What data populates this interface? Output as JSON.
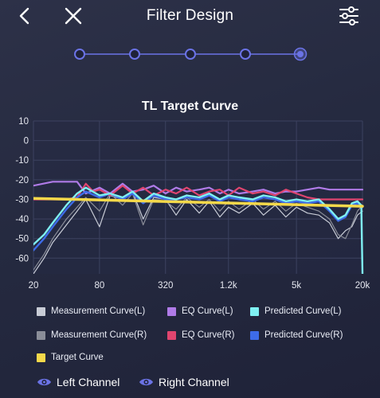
{
  "header": {
    "title": "Filter Design"
  },
  "icons": {
    "back": "chevron-left-icon",
    "close": "close-icon",
    "settings": "sliders-icon",
    "eye": "eye-icon"
  },
  "stepper": {
    "steps": 5,
    "current": 5
  },
  "colors": {
    "accent": "#6b73e6",
    "measurement_l": "#c8ccd6",
    "measurement_r": "#8a8d98",
    "eq_l": "#b07be8",
    "eq_r": "#e0456f",
    "predicted_l": "#7ff0f2",
    "predicted_r": "#3d6be8",
    "target": "#f5d94a"
  },
  "chart_data": {
    "type": "line",
    "title": "TL Target Curve",
    "x_scale": "log",
    "x_ticks": [
      "20",
      "80",
      "320",
      "1.2k",
      "5k",
      "20k"
    ],
    "x_tick_values": [
      20,
      80,
      320,
      1200,
      5000,
      20000
    ],
    "y_ticks": [
      "10",
      "0",
      "-10",
      "-20",
      "-30",
      "-40",
      "-50",
      "-60"
    ],
    "ylim": [
      -68,
      10
    ],
    "grid": true,
    "series": [
      {
        "name": "Measurement Curve(L)",
        "color_key": "measurement_l",
        "x": [
          20,
          25,
          30,
          40,
          50,
          60,
          80,
          100,
          130,
          160,
          200,
          250,
          320,
          400,
          500,
          650,
          800,
          1000,
          1200,
          1500,
          2000,
          2500,
          3200,
          4000,
          5000,
          6300,
          8000,
          10000,
          12000,
          14000,
          16000,
          18000,
          20000
        ],
        "y": [
          -68,
          -60,
          -52,
          -43,
          -36,
          -30,
          -44,
          -28,
          -30,
          -26,
          -40,
          -29,
          -30,
          -38,
          -30,
          -37,
          -31,
          -39,
          -34,
          -37,
          -32,
          -38,
          -33,
          -39,
          -34,
          -37,
          -38,
          -42,
          -50,
          -46,
          -44,
          -38,
          -36
        ]
      },
      {
        "name": "Measurement Curve(R)",
        "color_key": "measurement_r",
        "x": [
          20,
          25,
          30,
          40,
          50,
          60,
          80,
          100,
          130,
          160,
          200,
          250,
          320,
          400,
          500,
          650,
          800,
          1000,
          1200,
          1500,
          2000,
          2500,
          3200,
          4000,
          5000,
          6300,
          8000,
          10000,
          12000,
          14000,
          16000,
          18000,
          20000
        ],
        "y": [
          -66,
          -58,
          -50,
          -40,
          -34,
          -29,
          -36,
          -27,
          -33,
          -27,
          -43,
          -30,
          -31,
          -35,
          -29,
          -34,
          -30,
          -36,
          -31,
          -35,
          -30,
          -35,
          -31,
          -36,
          -32,
          -34,
          -36,
          -40,
          -48,
          -50,
          -43,
          -36,
          -33
        ]
      },
      {
        "name": "EQ Curve(L)",
        "color_key": "eq_l",
        "x": [
          20,
          30,
          40,
          50,
          60,
          80,
          100,
          130,
          160,
          200,
          250,
          320,
          400,
          500,
          650,
          800,
          1000,
          1200,
          1500,
          2000,
          2500,
          3200,
          4000,
          5000,
          6300,
          8000,
          10000,
          12000,
          16000,
          20000
        ],
        "y": [
          -23,
          -21,
          -21,
          -21,
          -27,
          -24,
          -27,
          -22,
          -26,
          -25,
          -23,
          -27,
          -24,
          -26,
          -25,
          -24,
          -27,
          -25,
          -27,
          -26,
          -25,
          -27,
          -26,
          -26,
          -25,
          -24,
          -25,
          -25,
          -25,
          -25
        ]
      },
      {
        "name": "EQ Curve(R)",
        "color_key": "eq_r",
        "x": [
          20,
          40,
          50,
          60,
          70,
          80,
          100,
          130,
          160,
          200,
          250,
          320,
          400,
          500,
          650,
          800,
          1000,
          1200,
          1500,
          2000,
          2500,
          3200,
          4000,
          5000,
          6300,
          8000,
          10000,
          12000,
          16000,
          20000
        ],
        "y": [
          -30,
          -30,
          -29,
          -22,
          -26,
          -25,
          -28,
          -23,
          -27,
          -24,
          -28,
          -25,
          -27,
          -24,
          -28,
          -26,
          -25,
          -28,
          -24,
          -27,
          -26,
          -28,
          -25,
          -27,
          -29,
          -30,
          -30,
          -30,
          -30,
          -30
        ]
      },
      {
        "name": "Predicted Curve(L)",
        "color_key": "predicted_l",
        "x": [
          20,
          25,
          30,
          40,
          50,
          60,
          80,
          100,
          130,
          160,
          200,
          250,
          320,
          400,
          500,
          650,
          800,
          1000,
          1200,
          1500,
          2000,
          2500,
          3200,
          4000,
          5000,
          6300,
          8000,
          10000,
          12000,
          14000,
          16000,
          18000,
          19500,
          20000
        ],
        "y": [
          -53,
          -48,
          -42,
          -33,
          -27,
          -24,
          -28,
          -27,
          -29,
          -26,
          -31,
          -27,
          -29,
          -30,
          -28,
          -29,
          -27,
          -30,
          -28,
          -29,
          -30,
          -28,
          -29,
          -31,
          -30,
          -31,
          -30,
          -35,
          -40,
          -38,
          -32,
          -31,
          -33,
          -68
        ]
      },
      {
        "name": "Predicted Curve(R)",
        "color_key": "predicted_r",
        "x": [
          20,
          25,
          30,
          40,
          50,
          60,
          80,
          100,
          130,
          160,
          200,
          250,
          320,
          400,
          500,
          650,
          800,
          1000,
          1200,
          1500,
          2000,
          2500,
          3200,
          4000,
          5000,
          6300,
          8000,
          10000,
          12000,
          14000,
          16000,
          18000,
          20000
        ],
        "y": [
          -56,
          -50,
          -44,
          -35,
          -29,
          -26,
          -29,
          -27,
          -30,
          -27,
          -32,
          -28,
          -30,
          -30,
          -29,
          -30,
          -28,
          -31,
          -29,
          -30,
          -31,
          -29,
          -30,
          -32,
          -31,
          -32,
          -31,
          -36,
          -41,
          -39,
          -33,
          -32,
          -34
        ]
      },
      {
        "name": "Target Curve",
        "color_key": "target",
        "x": [
          20,
          20000
        ],
        "y": [
          -29.5,
          -33.5
        ]
      }
    ]
  },
  "legend": [
    {
      "label": "Measurement Curve(L)",
      "color_key": "measurement_l"
    },
    {
      "label": "EQ Curve(L)",
      "color_key": "eq_l"
    },
    {
      "label": "Predicted Curve(L)",
      "color_key": "predicted_l"
    },
    {
      "label": "Measurement Curve(R)",
      "color_key": "measurement_r"
    },
    {
      "label": "EQ Curve(R)",
      "color_key": "eq_r"
    },
    {
      "label": "Predicted Curve(R)",
      "color_key": "predicted_r"
    },
    {
      "label": "Target Curve",
      "color_key": "target"
    }
  ],
  "channels": {
    "left": "Left Channel",
    "right": "Right Channel"
  }
}
